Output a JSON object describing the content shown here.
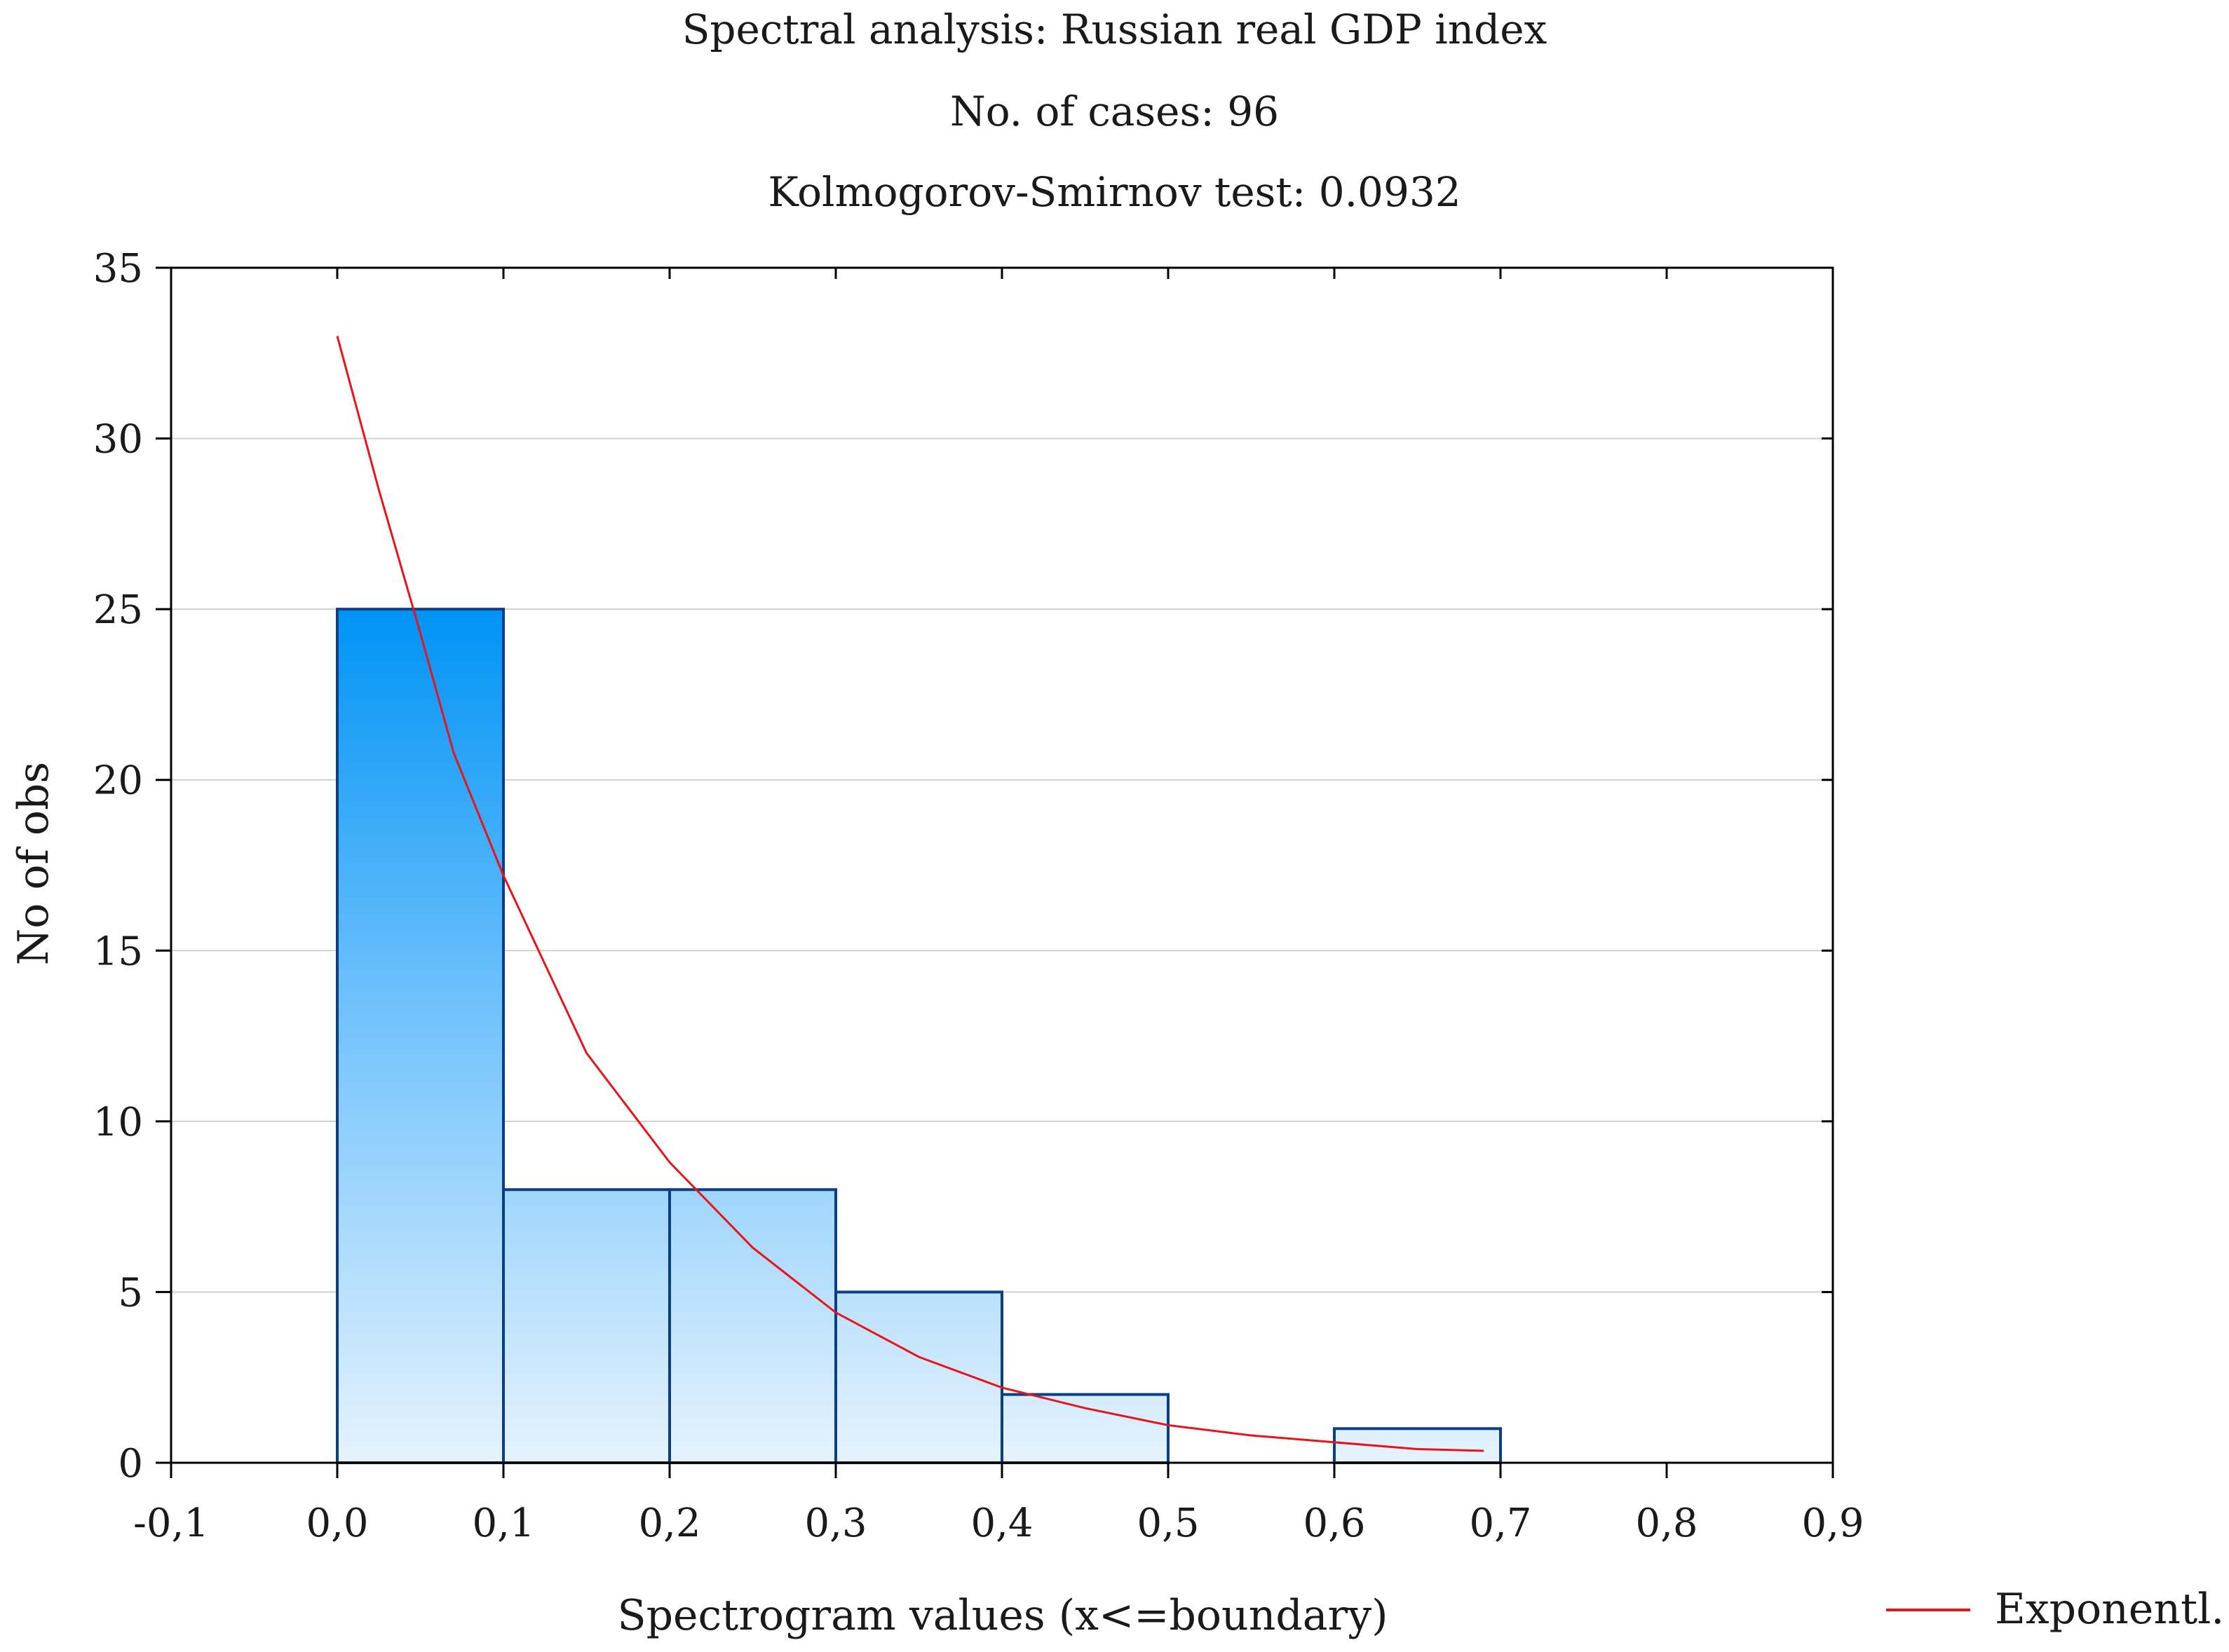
{
  "chart_data": {
    "type": "bar",
    "title_lines": [
      "Spectral analysis: Russian real GDP index",
      "No. of cases: 96",
      "Kolmogorov-Smirnov test: 0.0932"
    ],
    "xlabel": "Spectrogram values (x<=boundary)",
    "ylabel": "No of obs",
    "xlim": [
      -0.1,
      0.9
    ],
    "ylim": [
      0,
      35
    ],
    "x_ticks": [
      "-0,1",
      "0,0",
      "0,1",
      "0,2",
      "0,3",
      "0,4",
      "0,5",
      "0,6",
      "0,7",
      "0,8",
      "0,9"
    ],
    "x_tick_values": [
      -0.1,
      0.0,
      0.1,
      0.2,
      0.3,
      0.4,
      0.5,
      0.6,
      0.7,
      0.8,
      0.9
    ],
    "y_ticks": [
      "0",
      "5",
      "10",
      "15",
      "20",
      "25",
      "30",
      "35"
    ],
    "y_tick_values": [
      0,
      5,
      10,
      15,
      20,
      25,
      30,
      35
    ],
    "grid": true,
    "bins": [
      {
        "from": 0.0,
        "to": 0.1,
        "count": 25
      },
      {
        "from": 0.1,
        "to": 0.2,
        "count": 8
      },
      {
        "from": 0.2,
        "to": 0.3,
        "count": 8
      },
      {
        "from": 0.3,
        "to": 0.4,
        "count": 5
      },
      {
        "from": 0.4,
        "to": 0.5,
        "count": 2
      },
      {
        "from": 0.5,
        "to": 0.6,
        "count": 0
      },
      {
        "from": 0.6,
        "to": 0.7,
        "count": 1
      }
    ],
    "fit_curve": {
      "name": "Exponentl.",
      "color": "#e8141c",
      "x": [
        0.0,
        0.025,
        0.05,
        0.07,
        0.1,
        0.15,
        0.2,
        0.25,
        0.3,
        0.35,
        0.4,
        0.45,
        0.5,
        0.55,
        0.6,
        0.65,
        0.69
      ],
      "y": [
        33.0,
        28.5,
        24.3,
        20.8,
        17.2,
        12.0,
        8.8,
        6.3,
        4.4,
        3.1,
        2.2,
        1.6,
        1.1,
        0.8,
        0.6,
        0.4,
        0.35
      ]
    },
    "legend": {
      "position": "bottom-right",
      "label": "Exponentl."
    },
    "colors": {
      "bar_stroke": "#0a3f86",
      "bar_fill_dark": "#0093f5",
      "bar_fill_mid": "#6cc0fb",
      "bar_fill_light": "#e6f3fd",
      "grid": "#d0d0d0",
      "axis": "#000000"
    }
  }
}
